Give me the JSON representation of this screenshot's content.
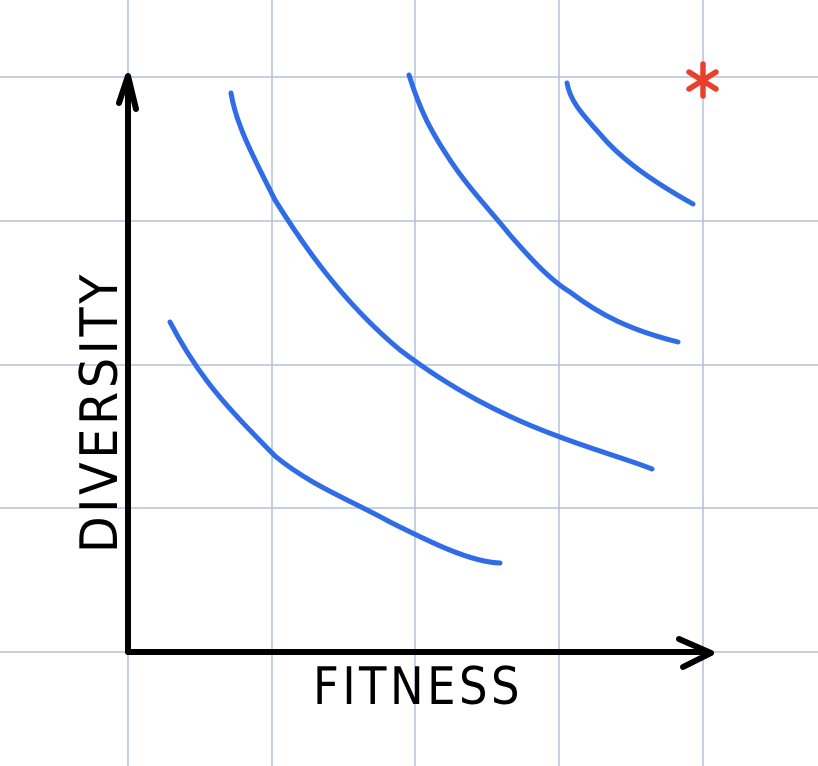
{
  "x_axis_label": "FITNESS",
  "y_axis_label": "DIVERSITY",
  "colors": {
    "front_curves": "#2f6ce6",
    "ideal_marker": "#e8402c",
    "grid": "#b2c0da",
    "axes": "#000000"
  },
  "ideal_marker_icon": "asterisk-icon",
  "front_count": 4
}
